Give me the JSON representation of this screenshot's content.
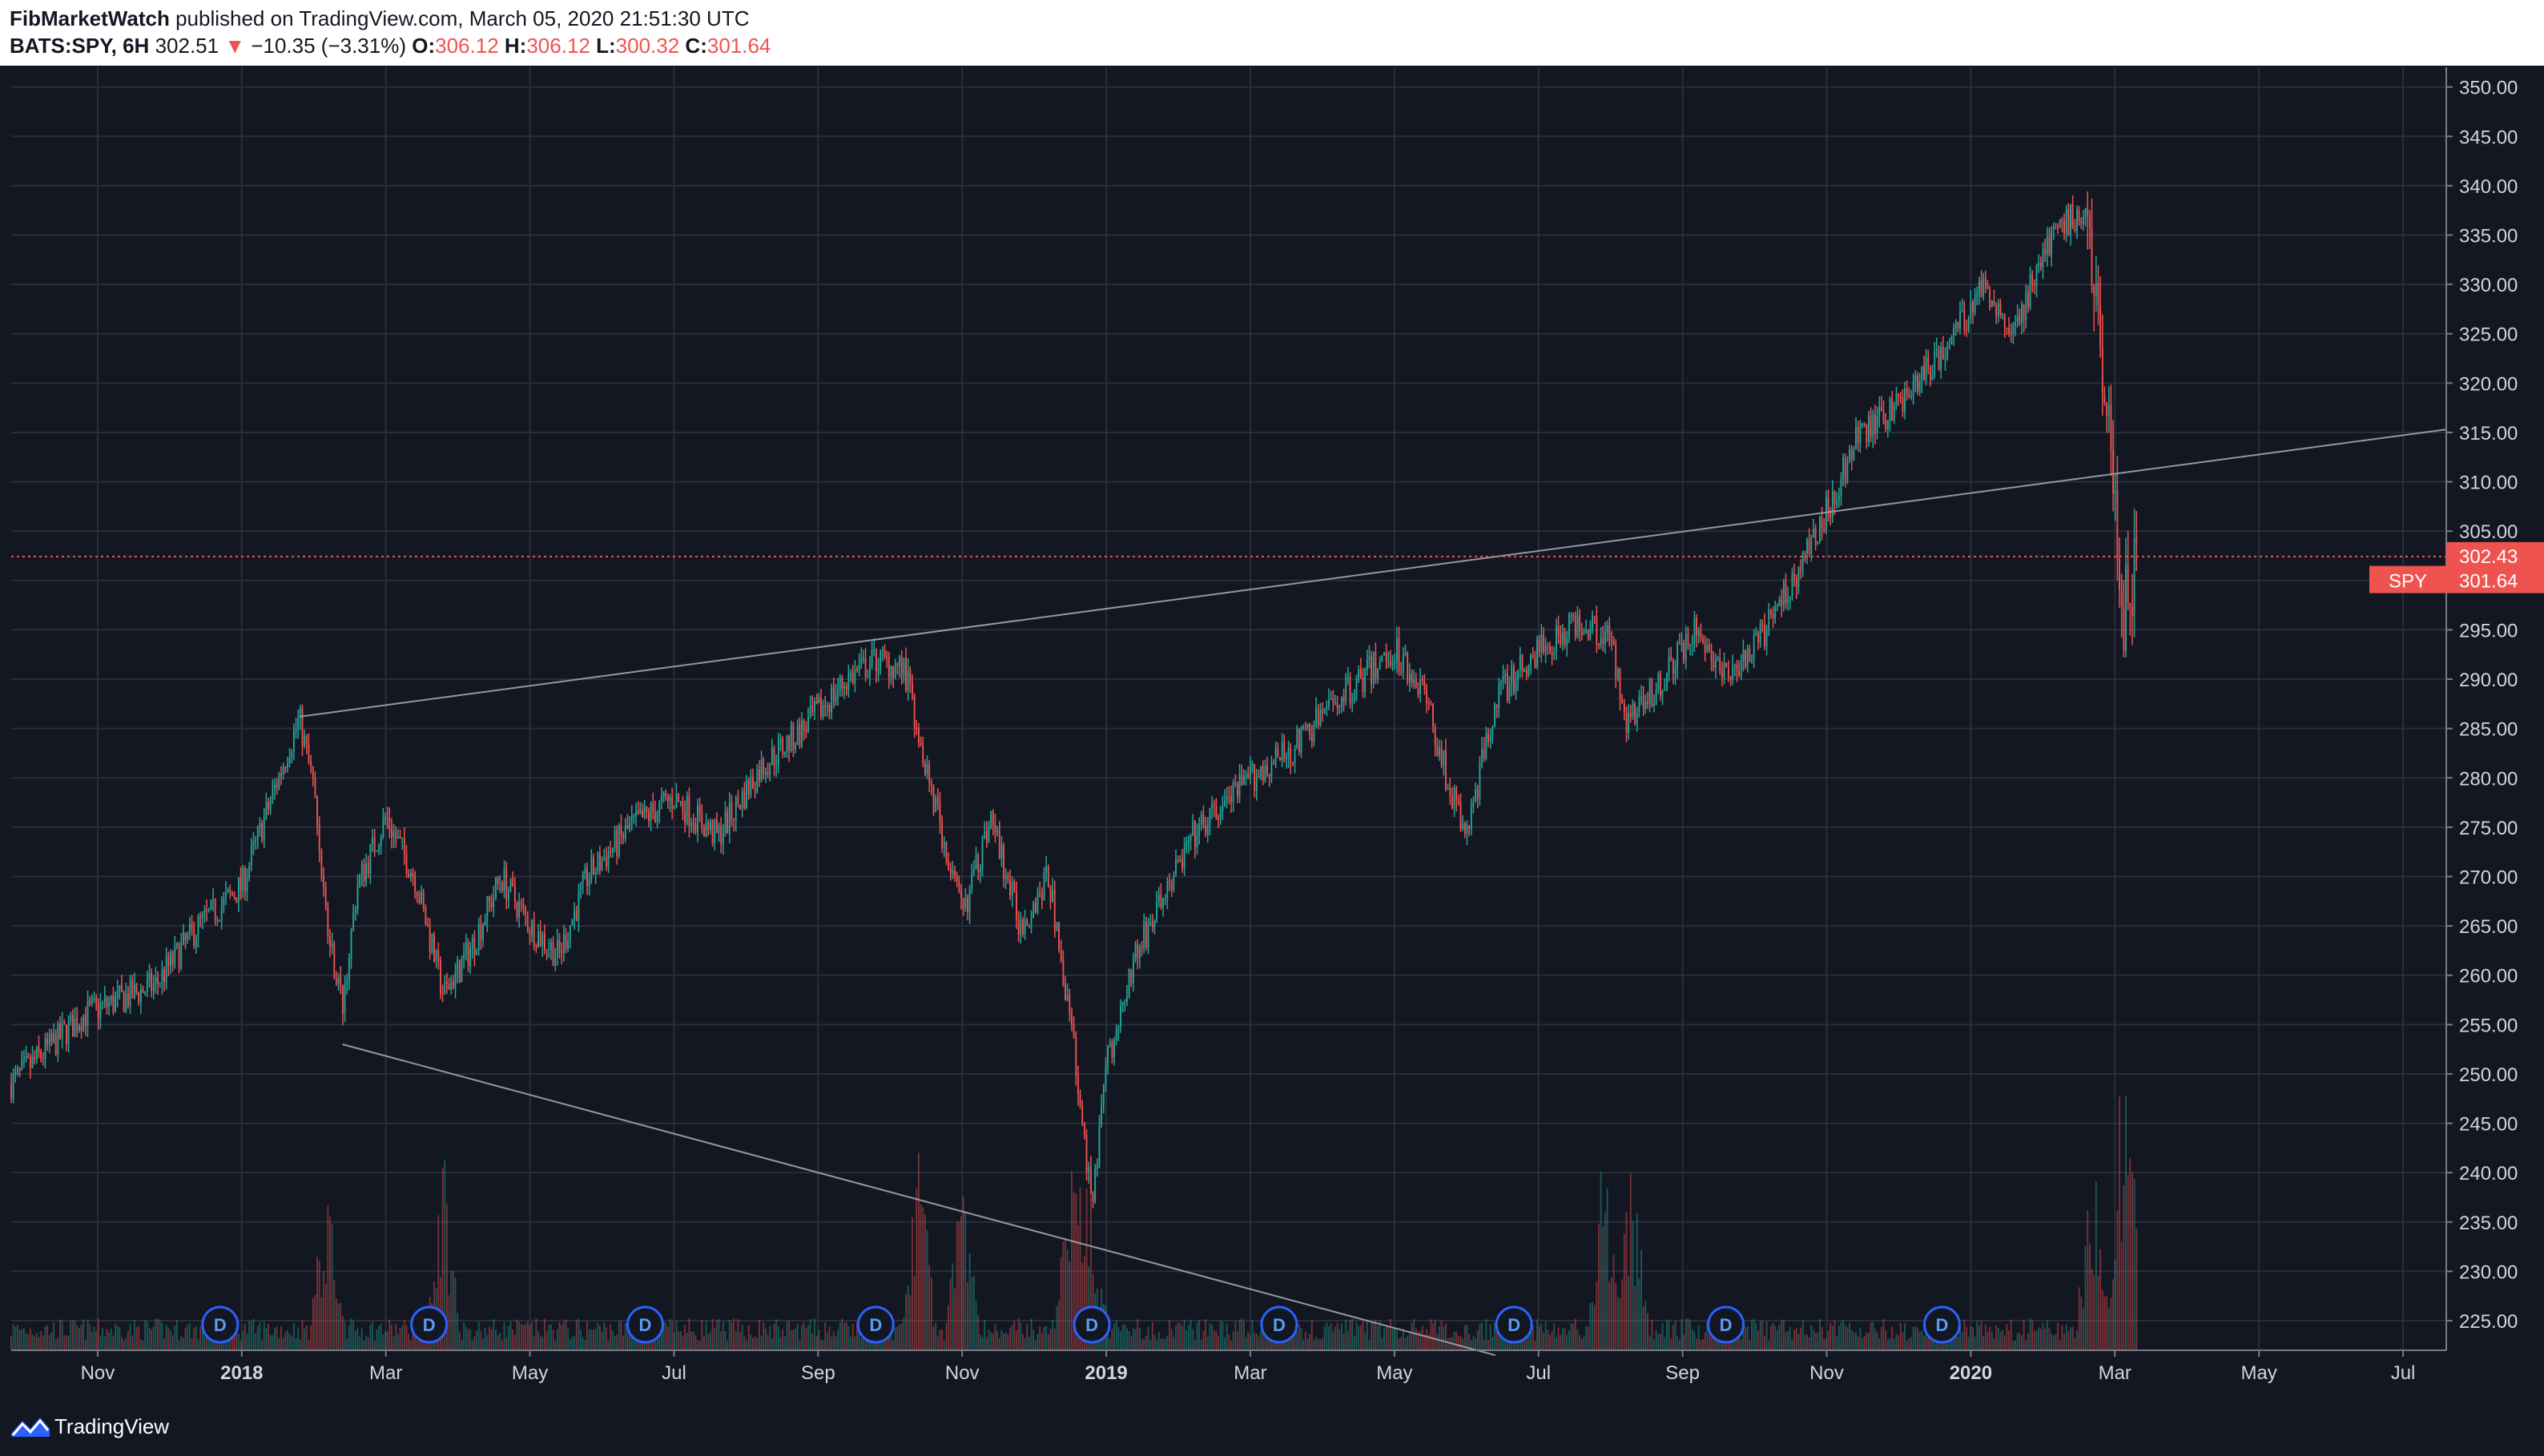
{
  "header": {
    "author": "FibMarketWatch",
    "published": "published on TradingView.com, March 05, 2020 21:51:30 UTC",
    "symbol": "BATS:SPY, 6H",
    "last": "302.51",
    "down_arrow": "▼",
    "change": "−10.35 (−3.31%)",
    "o_label": "O:",
    "o_value": "306.12",
    "h_label": "H:",
    "h_value": "306.12",
    "l_label": "L:",
    "l_value": "300.32",
    "c_label": "C:",
    "c_value": "301.64"
  },
  "footer": {
    "brand": "TradingView"
  },
  "colors": {
    "background": "#131722",
    "grid": "#2a2e39",
    "up": "#26a69a",
    "down": "#ef5350",
    "trendline": "#9598a1",
    "axis_text": "#d1d4dc",
    "dividend_marker": "#2962ff"
  },
  "chart_data": {
    "type": "candlestick",
    "symbol": "SPY",
    "interval": "6H",
    "ylim": [
      222,
      352
    ],
    "y_ticks": [
      "350.00",
      "345.00",
      "340.00",
      "335.00",
      "330.00",
      "325.00",
      "320.00",
      "315.00",
      "310.00",
      "305.00",
      "300.00",
      "295.00",
      "290.00",
      "285.00",
      "280.00",
      "275.00",
      "270.00",
      "265.00",
      "260.00",
      "255.00",
      "250.00",
      "245.00",
      "240.00",
      "235.00",
      "230.00",
      "225.00"
    ],
    "x_labels": [
      "Nov",
      "2018",
      "Mar",
      "May",
      "Jul",
      "Sep",
      "Nov",
      "2019",
      "Mar",
      "May",
      "Jul",
      "Sep",
      "Nov",
      "2020",
      "Mar",
      "May",
      "Jul"
    ],
    "x_label_t": [
      0.6,
      1.6,
      2.6,
      3.6,
      4.6,
      5.6,
      6.6,
      7.6,
      8.6,
      9.6,
      10.6,
      11.6,
      12.6,
      13.6,
      14.6,
      15.6,
      16.6
    ],
    "price_path": [
      [
        0.0,
        249
      ],
      [
        0.5,
        256
      ],
      [
        1.0,
        259
      ],
      [
        1.3,
        265
      ],
      [
        1.6,
        269
      ],
      [
        1.9,
        282
      ],
      [
        2.0,
        286
      ],
      [
        2.1,
        279
      ],
      [
        2.2,
        264
      ],
      [
        2.3,
        257
      ],
      [
        2.4,
        269
      ],
      [
        2.6,
        276
      ],
      [
        2.8,
        270
      ],
      [
        3.0,
        258
      ],
      [
        3.2,
        263
      ],
      [
        3.4,
        270
      ],
      [
        3.6,
        265
      ],
      [
        3.8,
        262
      ],
      [
        4.0,
        270
      ],
      [
        4.3,
        275
      ],
      [
        4.6,
        278
      ],
      [
        4.9,
        274
      ],
      [
        5.2,
        281
      ],
      [
        5.5,
        285
      ],
      [
        5.8,
        290
      ],
      [
        6.0,
        292
      ],
      [
        6.2,
        291
      ],
      [
        6.4,
        278
      ],
      [
        6.6,
        266
      ],
      [
        6.8,
        276
      ],
      [
        7.0,
        265
      ],
      [
        7.2,
        270
      ],
      [
        7.4,
        250
      ],
      [
        7.5,
        236
      ],
      [
        7.6,
        251
      ],
      [
        7.8,
        262
      ],
      [
        8.2,
        274
      ],
      [
        8.6,
        280
      ],
      [
        8.9,
        283
      ],
      [
        9.2,
        288
      ],
      [
        9.6,
        293
      ],
      [
        9.8,
        289
      ],
      [
        10.0,
        278
      ],
      [
        10.1,
        274
      ],
      [
        10.3,
        288
      ],
      [
        10.6,
        293
      ],
      [
        10.9,
        296
      ],
      [
        11.1,
        294
      ],
      [
        11.2,
        286
      ],
      [
        11.4,
        289
      ],
      [
        11.7,
        295
      ],
      [
        11.9,
        290
      ],
      [
        12.1,
        293
      ],
      [
        12.4,
        301
      ],
      [
        12.6,
        307
      ],
      [
        12.8,
        314
      ],
      [
        13.1,
        318
      ],
      [
        13.4,
        323
      ],
      [
        13.7,
        330
      ],
      [
        13.9,
        325
      ],
      [
        14.1,
        333
      ],
      [
        14.3,
        337
      ],
      [
        14.4,
        337
      ],
      [
        14.5,
        325
      ],
      [
        14.6,
        312
      ],
      [
        14.65,
        295
      ],
      [
        14.7,
        300
      ],
      [
        14.75,
        301.64
      ]
    ],
    "last_price": {
      "label": "SPY",
      "value": "301.64",
      "y": 301.64
    },
    "reference_line": {
      "value": "302.43",
      "y": 302.43
    },
    "trendlines": [
      {
        "from": [
          2.0,
          286.2
        ],
        "to": [
          16.9,
          315.3
        ]
      },
      {
        "from": [
          2.3,
          253.0
        ],
        "to": [
          10.3,
          221.5
        ]
      }
    ],
    "dividend_markers": {
      "label": "D",
      "t": [
        1.45,
        2.9,
        4.4,
        6.0,
        7.5,
        8.8,
        10.43,
        11.9,
        13.4
      ]
    },
    "volume_spike_t": [
      2.2,
      3.0,
      6.3,
      6.6,
      7.35,
      7.5,
      11.05,
      11.25,
      14.45,
      14.65,
      14.7
    ]
  }
}
